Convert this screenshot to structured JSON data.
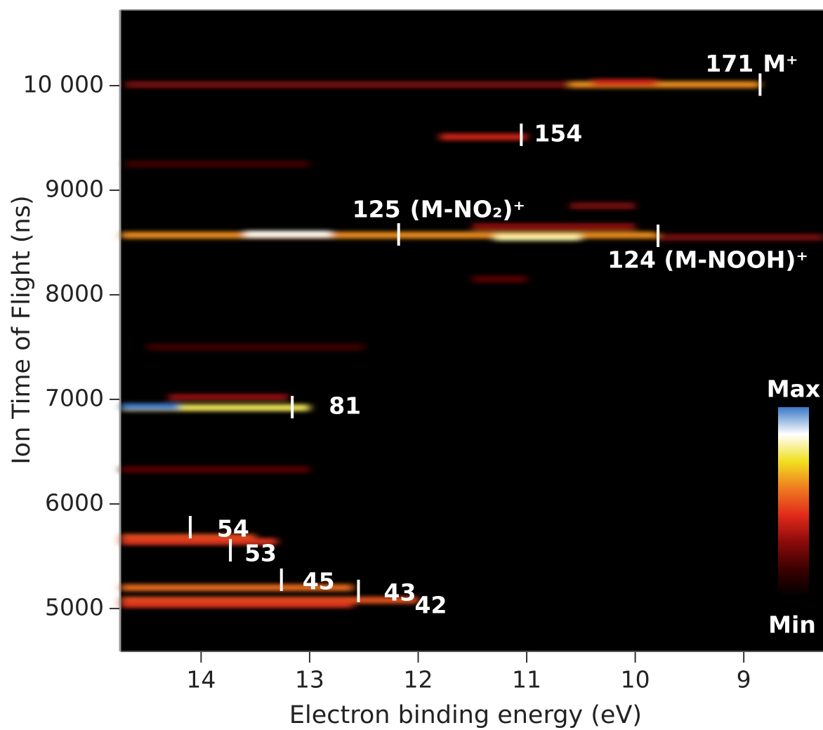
{
  "chart_data": {
    "type": "heatmap",
    "xlabel": "Electron binding energy (eV)",
    "ylabel": "Ion Time of Flight (ns)",
    "xlim": [
      14.74,
      8.27
    ],
    "ylim": [
      4590,
      10725
    ],
    "xticks": [
      14,
      13,
      12,
      11,
      10,
      9
    ],
    "yticks": [
      5000,
      6000,
      7000,
      8000,
      9000,
      {
        "value": 10000,
        "label": "10 000"
      }
    ],
    "colormap": [
      "#000000",
      "#3a0000",
      "#8a0a0a",
      "#e02a1a",
      "#f07a20",
      "#f0e020",
      "#ffffff",
      "#3a78c8"
    ],
    "colorbar": {
      "max_label": "Max",
      "min_label": "Min"
    },
    "streaks": [
      {
        "tof": 10010,
        "from": 14.7,
        "to": 10.6,
        "intensity": 0.25
      },
      {
        "tof": 10010,
        "from": 10.6,
        "to": 8.85,
        "intensity": 0.6
      },
      {
        "tof": 10030,
        "from": 10.4,
        "to": 9.8,
        "intensity": 0.4
      },
      {
        "tof": 9510,
        "from": 11.8,
        "to": 11.0,
        "intensity": 0.4
      },
      {
        "tof": 9250,
        "from": 14.7,
        "to": 13.0,
        "intensity": 0.15
      },
      {
        "tof": 8850,
        "from": 10.6,
        "to": 10.0,
        "intensity": 0.25
      },
      {
        "tof": 8650,
        "from": 11.5,
        "to": 10.0,
        "intensity": 0.3
      },
      {
        "tof": 8570,
        "from": 14.74,
        "to": 9.8,
        "intensity": 0.6
      },
      {
        "tof": 8580,
        "from": 13.6,
        "to": 12.8,
        "intensity": 0.85
      },
      {
        "tof": 8550,
        "from": 11.3,
        "to": 10.5,
        "intensity": 0.8
      },
      {
        "tof": 8550,
        "from": 9.8,
        "to": 8.27,
        "intensity": 0.25
      },
      {
        "tof": 8150,
        "from": 11.5,
        "to": 11.0,
        "intensity": 0.2
      },
      {
        "tof": 7500,
        "from": 14.5,
        "to": 12.5,
        "intensity": 0.15
      },
      {
        "tof": 7020,
        "from": 14.3,
        "to": 13.2,
        "intensity": 0.3
      },
      {
        "tof": 6920,
        "from": 14.74,
        "to": 13.0,
        "intensity": 0.75
      },
      {
        "tof": 6930,
        "from": 14.74,
        "to": 14.2,
        "intensity": 1.0
      },
      {
        "tof": 6330,
        "from": 14.74,
        "to": 13.0,
        "intensity": 0.2
      },
      {
        "tof": 5680,
        "from": 14.74,
        "to": 13.5,
        "intensity": 0.5
      },
      {
        "tof": 5640,
        "from": 14.74,
        "to": 13.3,
        "intensity": 0.45
      },
      {
        "tof": 5200,
        "from": 14.74,
        "to": 12.6,
        "intensity": 0.55
      },
      {
        "tof": 5080,
        "from": 14.74,
        "to": 12.0,
        "intensity": 0.5
      },
      {
        "tof": 5040,
        "from": 14.74,
        "to": 12.6,
        "intensity": 0.45
      }
    ],
    "annotations": [
      {
        "x": 8.85,
        "y": 10010,
        "label": "171",
        "label2": "M⁺"
      },
      {
        "x": 11.05,
        "y": 9530,
        "label": "154"
      },
      {
        "x": 12.18,
        "y": 8577,
        "label": "125",
        "label2": "(M-NO₂)⁺"
      },
      {
        "x": 9.79,
        "y": 8564,
        "label": "124 (M-NOOH)⁺"
      },
      {
        "x": 13.16,
        "y": 6926,
        "label": "81"
      },
      {
        "x": 14.1,
        "y": 5778,
        "label": "54"
      },
      {
        "x": 13.73,
        "y": 5557,
        "label": "53"
      },
      {
        "x": 13.26,
        "y": 5275,
        "label": "45"
      },
      {
        "x": 12.55,
        "y": 5168,
        "label": "43",
        "label2": "42"
      }
    ]
  }
}
